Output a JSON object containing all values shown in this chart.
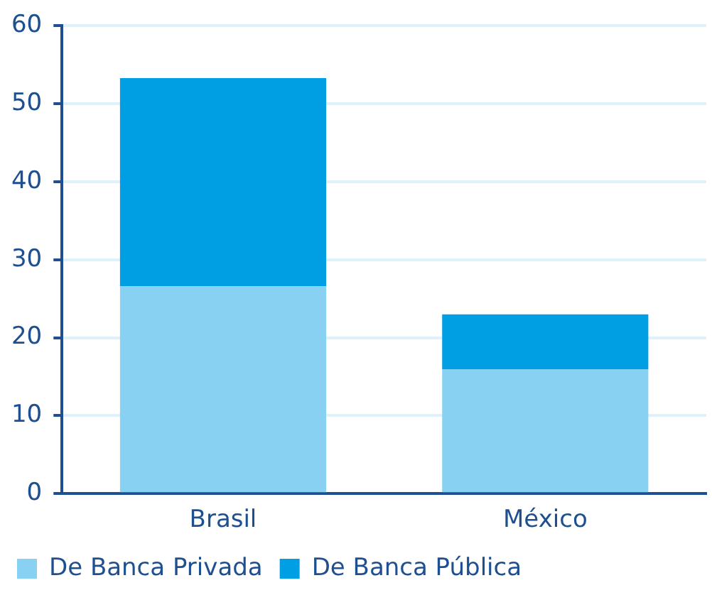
{
  "chart_data": {
    "type": "bar",
    "stacked": true,
    "categories": [
      "Brasil",
      "México"
    ],
    "series": [
      {
        "name": "De Banca Privada",
        "color": "#89d1f3",
        "values": [
          26.6,
          15.9
        ]
      },
      {
        "name": "De Banca Pública",
        "color": "#009fe3",
        "values": [
          26.7,
          7.1
        ]
      }
    ],
    "ylim": [
      0,
      60
    ],
    "yticks": [
      0,
      10,
      20,
      30,
      40,
      50,
      60
    ],
    "grid": "y",
    "legend": "bottom"
  }
}
